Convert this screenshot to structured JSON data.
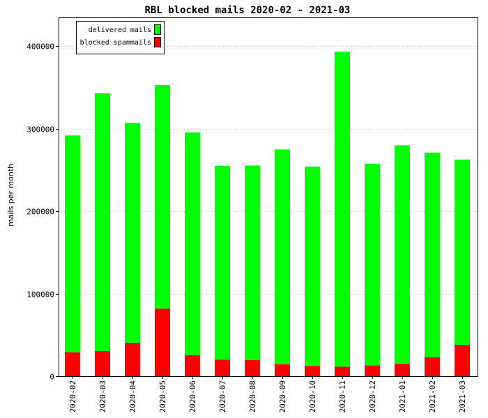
{
  "chart_data": {
    "type": "bar",
    "stacked": true,
    "title": "RBL blocked mails 2020-02 - 2021-03",
    "ylabel": "mails per month",
    "xlabel": "",
    "categories": [
      "2020-02",
      "2020-03",
      "2020-04",
      "2020-05",
      "2020-06",
      "2020-07",
      "2020-08",
      "2020-09",
      "2020-10",
      "2020-11",
      "2020-12",
      "2021-01",
      "2021-02",
      "2021-03"
    ],
    "series": [
      {
        "name": "blocked spammails",
        "color": "#ff0000",
        "values": [
          29000,
          30500,
          40500,
          82000,
          25500,
          20000,
          19500,
          14500,
          12500,
          11500,
          13000,
          15000,
          23000,
          38000
        ]
      },
      {
        "name": "delivered mails",
        "color": "#00ff00",
        "values": [
          263000,
          312500,
          266500,
          271000,
          270000,
          235000,
          236000,
          260500,
          241500,
          382000,
          244500,
          265000,
          248000,
          224500
        ]
      }
    ],
    "ylim": [
      0,
      435000
    ],
    "yticks": [
      0,
      100000,
      200000,
      300000,
      400000
    ],
    "ytick_labels": [
      "0",
      "100000",
      "200000",
      "300000",
      "400000"
    ],
    "grid": true,
    "legend_position": "top-left",
    "legend_order": [
      "delivered mails",
      "blocked spammails"
    ]
  }
}
